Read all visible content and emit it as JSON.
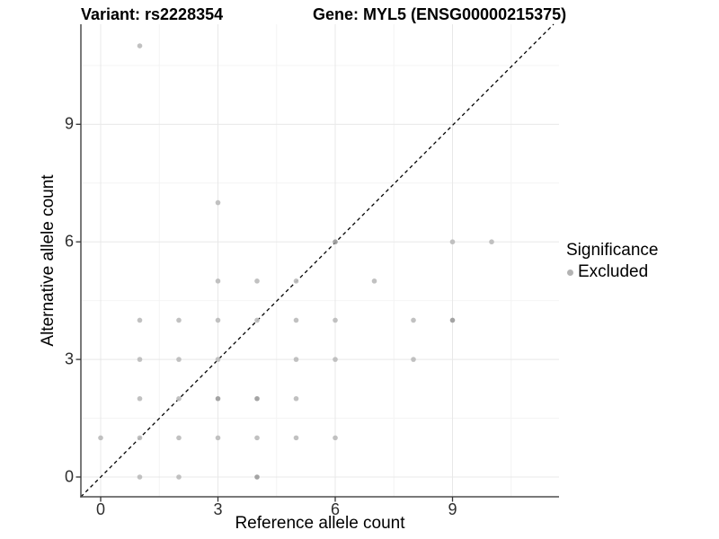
{
  "header": {
    "variant_title": "Variant: rs2228354",
    "gene_title": "Gene: MYL5 (ENSG00000215375)"
  },
  "chart_data": {
    "type": "scatter",
    "title_left": "Variant: rs2228354",
    "title_right": "Gene: MYL5 (ENSG00000215375)",
    "xlabel": "Reference allele count",
    "ylabel": "Alternative allele count",
    "x_ticks": [
      0,
      3,
      6,
      9
    ],
    "y_ticks": [
      0,
      3,
      6,
      9
    ],
    "xlim": [
      -0.5,
      11.7
    ],
    "ylim": [
      -0.55,
      11.55
    ],
    "grid": "major and minor, light gray, white panel background",
    "identity_line": {
      "equation": "y = x",
      "style": "dashed",
      "color": "#000000"
    },
    "points": [
      {
        "x": 1,
        "y": 11
      },
      {
        "x": 3,
        "y": 7
      },
      {
        "x": 6,
        "y": 6,
        "shade": "dark"
      },
      {
        "x": 9,
        "y": 6
      },
      {
        "x": 10,
        "y": 6
      },
      {
        "x": 3,
        "y": 5
      },
      {
        "x": 4,
        "y": 5
      },
      {
        "x": 5,
        "y": 5
      },
      {
        "x": 7,
        "y": 5
      },
      {
        "x": 1,
        "y": 4
      },
      {
        "x": 2,
        "y": 4
      },
      {
        "x": 3,
        "y": 4
      },
      {
        "x": 4,
        "y": 4
      },
      {
        "x": 5,
        "y": 4
      },
      {
        "x": 6,
        "y": 4
      },
      {
        "x": 8,
        "y": 4
      },
      {
        "x": 9,
        "y": 4,
        "shade": "dark"
      },
      {
        "x": 1,
        "y": 3
      },
      {
        "x": 2,
        "y": 3
      },
      {
        "x": 3,
        "y": 3
      },
      {
        "x": 5,
        "y": 3
      },
      {
        "x": 6,
        "y": 3
      },
      {
        "x": 8,
        "y": 3
      },
      {
        "x": 1,
        "y": 2
      },
      {
        "x": 2,
        "y": 2
      },
      {
        "x": 3,
        "y": 2,
        "shade": "dark"
      },
      {
        "x": 4,
        "y": 2,
        "shade": "dark"
      },
      {
        "x": 5,
        "y": 2
      },
      {
        "x": 0,
        "y": 1
      },
      {
        "x": 1,
        "y": 1
      },
      {
        "x": 2,
        "y": 1
      },
      {
        "x": 3,
        "y": 1
      },
      {
        "x": 4,
        "y": 1
      },
      {
        "x": 5,
        "y": 1
      },
      {
        "x": 6,
        "y": 1
      },
      {
        "x": 1,
        "y": 0
      },
      {
        "x": 2,
        "y": 0
      },
      {
        "x": 4,
        "y": 0,
        "shade": "dark"
      }
    ],
    "colors": {
      "point": "#bcbcbc",
      "point_dark": "#9c9c9c",
      "grid_major": "#e8e8e8",
      "grid_minor": "#f4f4f4",
      "axis_line": "#4d4d4d",
      "identity_line": "#000000",
      "legend_dot": "#b3b3b3"
    },
    "legend": {
      "title": "Significance",
      "position": "right",
      "items": [
        {
          "label": "Excluded",
          "marker": "gray-dot"
        }
      ]
    }
  }
}
